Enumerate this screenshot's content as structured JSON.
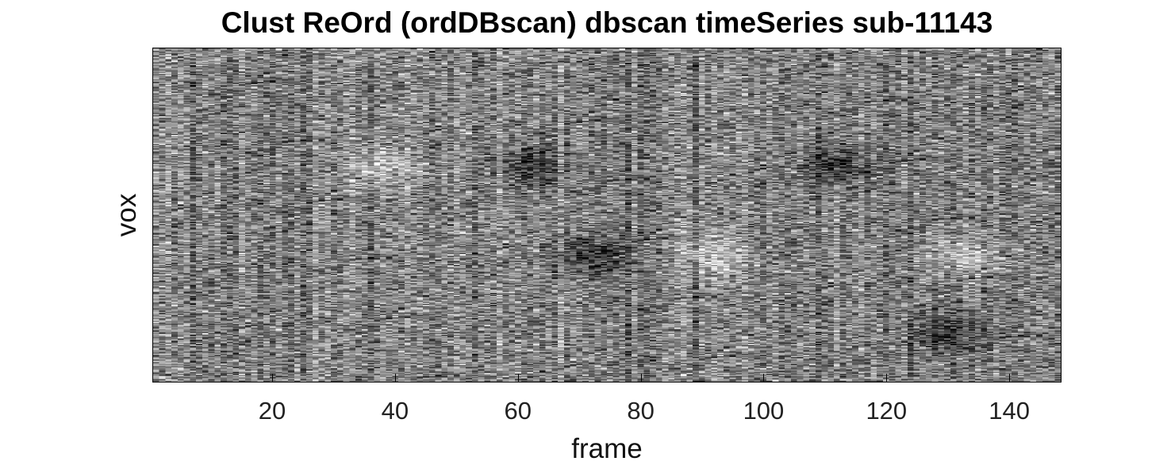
{
  "chart_data": {
    "type": "heatmap",
    "title": "Clust ReOrd (ordDBscan) dbscan timeSeries sub-11143",
    "xlabel": "frame",
    "ylabel": "vox",
    "xlim": [
      1,
      148
    ],
    "xticks": [
      20,
      40,
      60,
      80,
      100,
      120,
      140
    ],
    "colormap": "gray",
    "features": [
      {
        "frame": 62,
        "vox_frac": 0.35,
        "value": "dark"
      },
      {
        "frame": 112,
        "vox_frac": 0.35,
        "value": "dark"
      },
      {
        "frame": 130,
        "vox_frac": 0.85,
        "value": "dark"
      },
      {
        "frame": 72,
        "vox_frac": 0.62,
        "value": "dark"
      },
      {
        "frame": 38,
        "vox_frac": 0.35,
        "value": "bright"
      },
      {
        "frame": 92,
        "vox_frac": 0.62,
        "value": "bright"
      },
      {
        "frame": 133,
        "vox_frac": 0.62,
        "value": "bright"
      }
    ]
  }
}
